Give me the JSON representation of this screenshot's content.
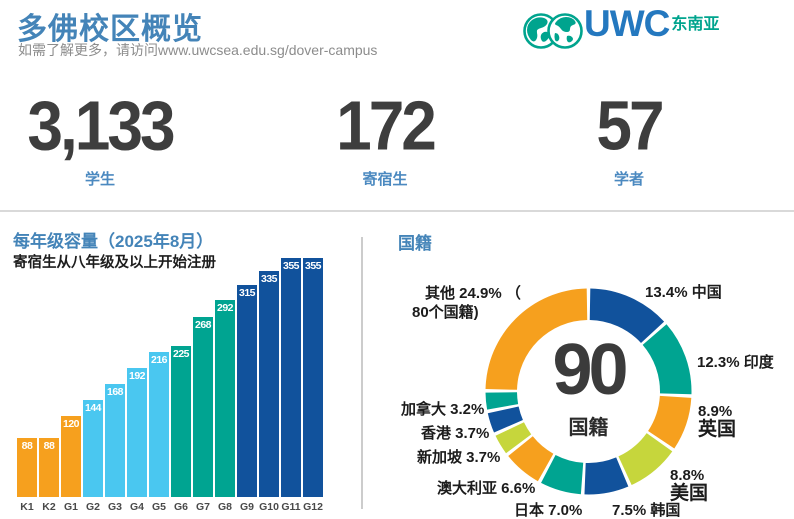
{
  "page": {
    "title": "多佛校区概览",
    "subtitle": "如需了解更多，请访问www.uwcsea.edu.sg/dover-campus"
  },
  "logo": {
    "text": "UWC",
    "region": "东南亚"
  },
  "stats": [
    {
      "value": "3,133",
      "label": "学生"
    },
    {
      "value": "172",
      "label": "寄宿生"
    },
    {
      "value": "57",
      "label": "学者"
    }
  ],
  "colors": {
    "orange": "#F6A01E",
    "light_blue": "#4AC7F0",
    "teal": "#00A491",
    "dark_blue": "#11529C",
    "lime": "#C6D63C",
    "accent_blue": "#4484B8",
    "number_dark": "#3E3E3E"
  },
  "chart_data": [
    {
      "type": "bar",
      "title": "每年级容量（2025年8月）",
      "note": "寄宿生从八年级及以上开始注册",
      "categories": [
        "K1",
        "K2",
        "G1",
        "G2",
        "G3",
        "G4",
        "G5",
        "G6",
        "G7",
        "G8",
        "G9",
        "G10",
        "G11",
        "G12"
      ],
      "values": [
        88,
        88,
        120,
        144,
        168,
        192,
        216,
        225,
        268,
        292,
        315,
        335,
        355,
        355
      ],
      "bar_colors": [
        "orange",
        "orange",
        "orange",
        "light_blue",
        "light_blue",
        "light_blue",
        "light_blue",
        "teal",
        "teal",
        "teal",
        "dark_blue",
        "dark_blue",
        "dark_blue",
        "dark_blue"
      ],
      "ylim": [
        0,
        355
      ],
      "grid": false,
      "value_labels": "inside-top"
    },
    {
      "type": "donut",
      "title": "国籍",
      "center": {
        "value": "90",
        "label": "国籍"
      },
      "segments": [
        {
          "name": "中国",
          "pct": 13.4,
          "color": "dark_blue"
        },
        {
          "name": "印度",
          "pct": 12.3,
          "color": "teal"
        },
        {
          "name": "英国",
          "pct": 8.9,
          "color": "orange"
        },
        {
          "name": "美国",
          "pct": 8.8,
          "color": "lime"
        },
        {
          "name": "韩国",
          "pct": 7.5,
          "color": "dark_blue"
        },
        {
          "name": "日本",
          "pct": 7.0,
          "color": "teal"
        },
        {
          "name": "澳大利亚",
          "pct": 6.6,
          "color": "orange"
        },
        {
          "name": "新加坡",
          "pct": 3.7,
          "color": "lime"
        },
        {
          "name": "香港",
          "pct": 3.7,
          "color": "dark_blue"
        },
        {
          "name": "加拿大",
          "pct": 3.2,
          "color": "teal"
        },
        {
          "name": "其他",
          "pct": 24.9,
          "color": "orange",
          "note": "80个国籍"
        }
      ],
      "labels": {
        "other_line1": "其他 24.9% （",
        "other_line2": "80个国籍)",
        "china": "13.4% 中国",
        "india": "12.3% 印度",
        "uk_pct": "8.9%",
        "uk_name": "英国",
        "us_pct": "8.8%",
        "us_name": "美国",
        "korea": "7.5% 韩国",
        "japan": "日本 7.0%",
        "australia": "澳大利亚 6.6%",
        "singapore": "新加坡 3.7%",
        "hongkong": "香港 3.7%",
        "canada": "加拿大 3.2%"
      }
    }
  ]
}
